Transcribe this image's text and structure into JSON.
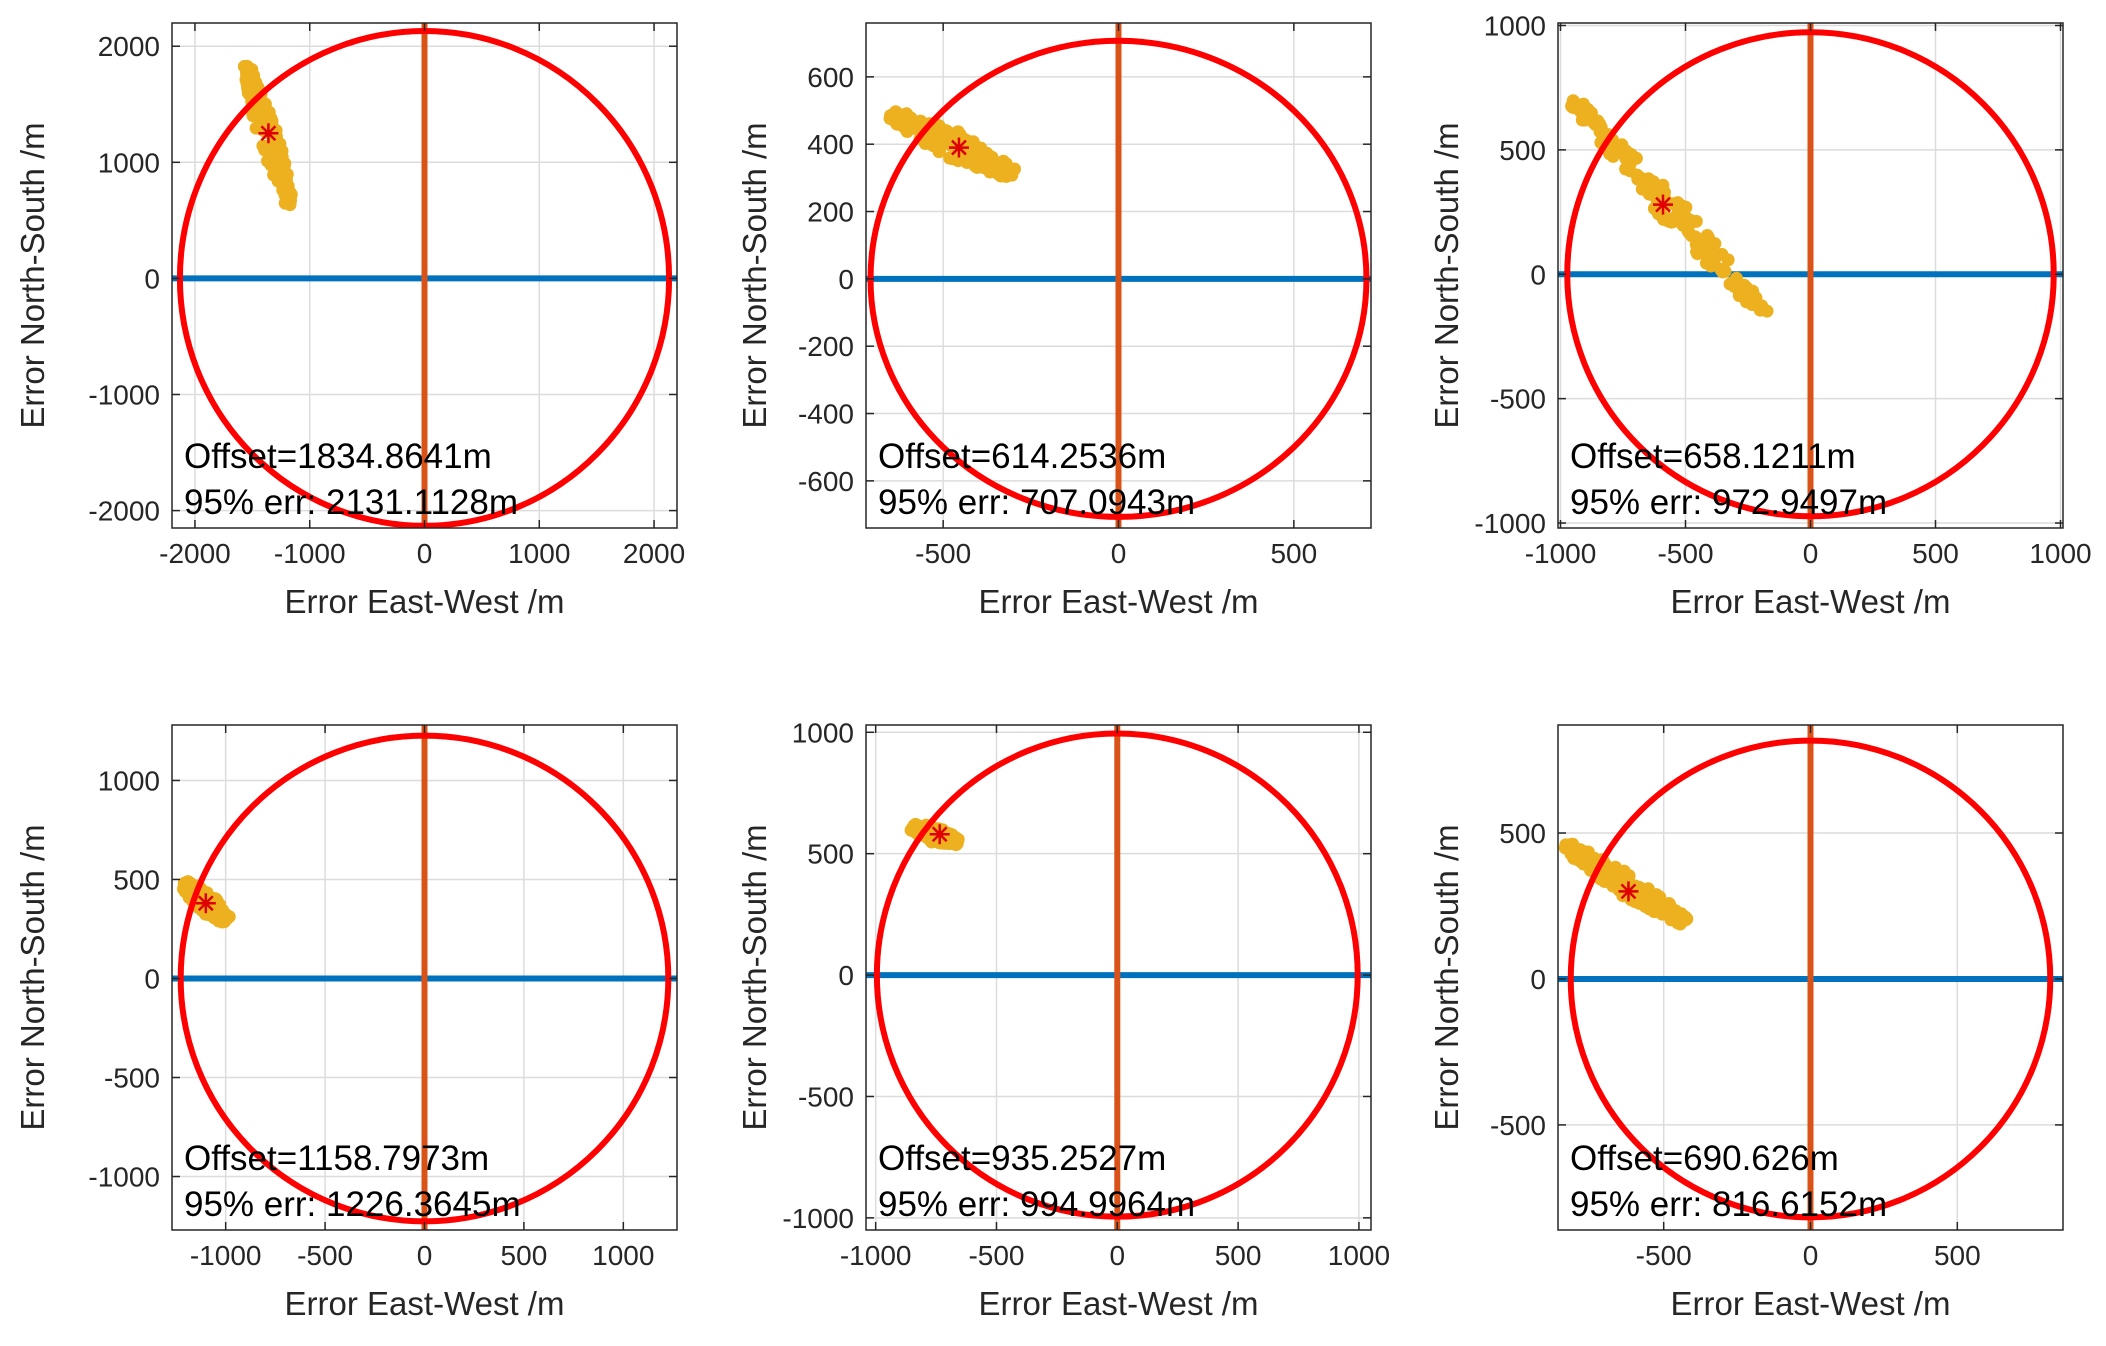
{
  "chart_data": [
    {
      "type": "scatter",
      "xlabel": "Error East-West /m",
      "ylabel": "Error North-South /m",
      "xlim": [
        -2200,
        2200
      ],
      "ylim": [
        -2150,
        2200
      ],
      "xticks": [
        -2000,
        -1000,
        0,
        1000,
        2000
      ],
      "yticks": [
        -2000,
        -1000,
        0,
        1000,
        2000
      ],
      "grid": true,
      "circle_radius": 2131.1128,
      "mean_marker": [
        -1360,
        1250
      ],
      "cluster": {
        "from": [
          -1560,
          1840
        ],
        "to": [
          -1170,
          630
        ],
        "halfwidth": 90
      },
      "annotations": [
        "Offset=1834.8641m",
        "95% err: 2131.1128m"
      ]
    },
    {
      "type": "scatter",
      "xlabel": "Error East-West /m",
      "ylabel": "Error North-South /m",
      "xlim": [
        -720,
        720
      ],
      "ylim": [
        -740,
        760
      ],
      "xticks": [
        -500,
        0,
        500
      ],
      "yticks": [
        -600,
        -400,
        -200,
        0,
        200,
        400,
        600
      ],
      "grid": true,
      "circle_radius": 707.0943,
      "mean_marker": [
        -455,
        390
      ],
      "cluster": {
        "from": [
          -650,
          490
        ],
        "to": [
          -300,
          310
        ],
        "halfwidth": 42
      },
      "annotations": [
        "Offset=614.2536m",
        "95% err: 707.0943m"
      ]
    },
    {
      "type": "scatter",
      "xlabel": "Error East-West /m",
      "ylabel": "Error North-South /m",
      "xlim": [
        -1010,
        1010
      ],
      "ylim": [
        -1020,
        1010
      ],
      "xticks": [
        -1000,
        -500,
        0,
        500,
        1000
      ],
      "yticks": [
        -1000,
        -500,
        0,
        500,
        1000
      ],
      "grid": true,
      "circle_radius": 972.9497,
      "mean_marker": [
        -590,
        280
      ],
      "cluster": {
        "from": [
          -950,
          700
        ],
        "to": [
          -180,
          -160
        ],
        "halfwidth": 55
      },
      "annotations": [
        "Offset=658.1211m",
        "95% err: 972.9497m"
      ]
    },
    {
      "type": "scatter",
      "xlabel": "Error East-West /m",
      "ylabel": "Error North-South /m",
      "xlim": [
        -1270,
        1270
      ],
      "ylim": [
        -1270,
        1280
      ],
      "xticks": [
        -1000,
        -500,
        0,
        500,
        1000
      ],
      "yticks": [
        -1000,
        -500,
        0,
        500,
        1000
      ],
      "grid": true,
      "circle_radius": 1226.3645,
      "mean_marker": [
        -1100,
        380
      ],
      "cluster": {
        "from": [
          -1210,
          480
        ],
        "to": [
          -990,
          290
        ],
        "halfwidth": 55
      },
      "annotations": [
        "Offset=1158.7973m",
        "95% err: 1226.3645m"
      ]
    },
    {
      "type": "scatter",
      "xlabel": "Error East-West /m",
      "ylabel": "Error North-South /m",
      "xlim": [
        -1040,
        1050
      ],
      "ylim": [
        -1050,
        1030
      ],
      "xticks": [
        -1000,
        -500,
        0,
        500,
        1000
      ],
      "yticks": [
        -1000,
        -500,
        0,
        500,
        1000
      ],
      "grid": true,
      "circle_radius": 994.9964,
      "mean_marker": [
        -735,
        580
      ],
      "cluster": {
        "from": [
          -850,
          610
        ],
        "to": [
          -660,
          550
        ],
        "halfwidth": 35
      },
      "annotations": [
        "Offset=935.2527m",
        "95% err: 994.9964m"
      ]
    },
    {
      "type": "scatter",
      "xlabel": "Error East-West /m",
      "ylabel": "Error North-South /m",
      "xlim": [
        -860,
        860
      ],
      "ylim": [
        -860,
        870
      ],
      "xticks": [
        -500,
        0,
        500
      ],
      "yticks": [
        -500,
        0,
        500
      ],
      "grid": true,
      "circle_radius": 816.6152,
      "mean_marker": [
        -620,
        300
      ],
      "cluster": {
        "from": [
          -840,
          460
        ],
        "to": [
          -420,
          190
        ],
        "halfwidth": 40
      },
      "annotations": [
        "Offset=690.626m",
        "95% err: 816.6152m"
      ]
    }
  ],
  "colors": {
    "circle": "#ff0000",
    "horizontal_axis_line": "#0072bd",
    "vertical_axis_line": "#d95319",
    "scatter": "#edb120",
    "mean_marker": "#e00000",
    "grid": "#dcdcdc",
    "axes": "#262626"
  }
}
